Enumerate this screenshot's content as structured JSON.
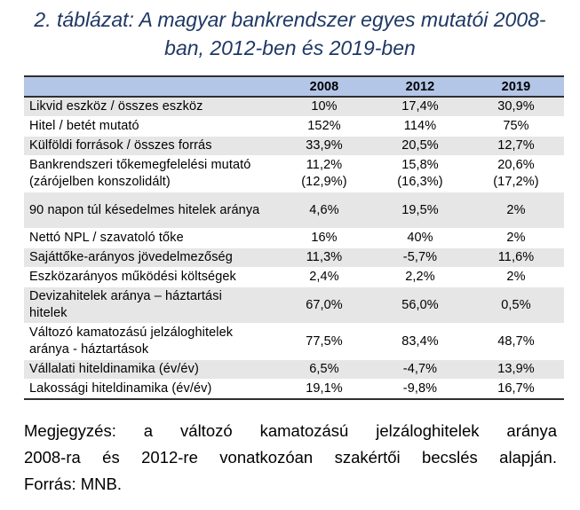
{
  "title": {
    "line1": "2. táblázat: A magyar bankrendszer egyes mutatói 2008-",
    "line2": "ban, 2012-ben és 2019-ben"
  },
  "table": {
    "headers": [
      "",
      "2008",
      "2012",
      "2019"
    ],
    "rows": [
      {
        "label": "Likvid eszköz / összes eszköz",
        "v2008": "10%",
        "v2012": "17,4%",
        "v2019": "30,9%"
      },
      {
        "label": "Hitel / betét mutató",
        "v2008": "152%",
        "v2012": "114%",
        "v2019": "75%"
      },
      {
        "label": "Külföldi források / összes forrás",
        "v2008": "33,9%",
        "v2012": "20,5%",
        "v2019": "12,7%"
      },
      {
        "label": "Bankrendszeri tőkemegfelelési mutató",
        "v2008": "11,2%",
        "v2012": "15,8%",
        "v2019": "20,6%",
        "label2": "(zárójelben konszolidált)",
        "v2008b": "(12,9%)",
        "v2012b": "(16,3%)",
        "v2019b": "(17,2%)"
      },
      {
        "label": "90 napon túl késedelmes hitelek aránya",
        "v2008": "4,6%",
        "v2012": "19,5%",
        "v2019": "2%"
      },
      {
        "label": "Nettó NPL / szavatoló tőke",
        "v2008": "16%",
        "v2012": "40%",
        "v2019": "2%"
      },
      {
        "label": "Sajáttőke-arányos jövedelmezőség",
        "v2008": "11,3%",
        "v2012": "-5,7%",
        "v2019": "11,6%"
      },
      {
        "label": "Eszközarányos működési költségek",
        "v2008": "2,4%",
        "v2012": "2,2%",
        "v2019": "2%"
      },
      {
        "label": "Devizahitelek aránya – háztartási",
        "label2": "hitelek",
        "v2008": "67,0%",
        "v2012": "56,0%",
        "v2019": "0,5%"
      },
      {
        "label": "Változó kamatozású jelzáloghitelek",
        "label2": "aránya - háztartások",
        "v2008": "77,5%",
        "v2012": "83,4%",
        "v2019": "48,7%"
      },
      {
        "label": "Vállalati hiteldinamika (év/év)",
        "v2008": "6,5%",
        "v2012": "-4,7%",
        "v2019": "13,9%"
      },
      {
        "label": "Lakossági hiteldinamika (év/év)",
        "v2008": "19,1%",
        "v2012": "-9,8%",
        "v2019": "16,7%"
      }
    ]
  },
  "note": {
    "line1": "Megjegyzés: a változó kamatozású jelzáloghitelek aránya",
    "line2": "2008-ra és 2012-re vonatkozóan szakértői becslés alapján.",
    "line3": "Forrás: MNB."
  }
}
